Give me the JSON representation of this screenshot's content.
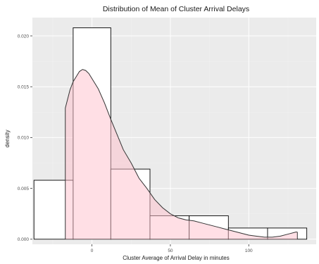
{
  "chart_data": {
    "type": "histogram",
    "title": "Distribution of Mean of Cluster Arrival Delays",
    "xlabel": "Cluster Average of Arrival Delay in minutes",
    "ylabel": "density",
    "xlim": [
      -38,
      143
    ],
    "ylim": [
      -0.0005,
      0.0218
    ],
    "x_ticks": [
      0,
      50,
      100
    ],
    "x_tick_labels": [
      "0",
      "50",
      "100"
    ],
    "y_ticks": [
      0.0,
      0.005,
      0.01,
      0.015,
      0.02
    ],
    "y_tick_labels": [
      "0.000",
      "0.005",
      "0.010",
      "0.015",
      "0.020"
    ],
    "grid": true,
    "legend": "none",
    "histogram": {
      "bins": [
        {
          "x0": -37,
          "x1": -12,
          "density": 0.0058
        },
        {
          "x0": -12,
          "x1": 12,
          "density": 0.0208
        },
        {
          "x0": 12,
          "x1": 37,
          "density": 0.0069
        },
        {
          "x0": 37,
          "x1": 62,
          "density": 0.0023
        },
        {
          "x0": 62,
          "x1": 87,
          "density": 0.0023
        },
        {
          "x0": 87,
          "x1": 112,
          "density": 0.0011
        },
        {
          "x0": 112,
          "x1": 137,
          "density": 0.0011
        }
      ],
      "fill": "#ffffff",
      "stroke": "#000000"
    },
    "density_curve": {
      "x": [
        -17,
        -14,
        -12,
        -10,
        -8,
        -6,
        -4,
        -2,
        0,
        4,
        8,
        12,
        16,
        20,
        25,
        30,
        35,
        40,
        45,
        50,
        55,
        60,
        65,
        70,
        75,
        80,
        85,
        90,
        95,
        100,
        105,
        110,
        115,
        120,
        125,
        130,
        131
      ],
      "y": [
        0.0129,
        0.0147,
        0.0155,
        0.016,
        0.0165,
        0.0167,
        0.0166,
        0.0163,
        0.0158,
        0.0148,
        0.0134,
        0.0118,
        0.0103,
        0.0088,
        0.0075,
        0.006,
        0.005,
        0.0039,
        0.0031,
        0.0025,
        0.0021,
        0.0019,
        0.0018,
        0.0016,
        0.0014,
        0.0012,
        0.001,
        0.0008,
        0.0006,
        0.0004,
        0.0003,
        0.0002,
        0.0002,
        0.0003,
        0.0005,
        0.0007,
        0.0007
      ],
      "fill": "#ffc0cb",
      "fill_opacity": 0.5,
      "stroke": "#333333"
    }
  },
  "colors": {
    "panel_background": "#ebebeb",
    "gridline_major": "#ffffff",
    "gridline_minor": "#f2f2f2"
  }
}
